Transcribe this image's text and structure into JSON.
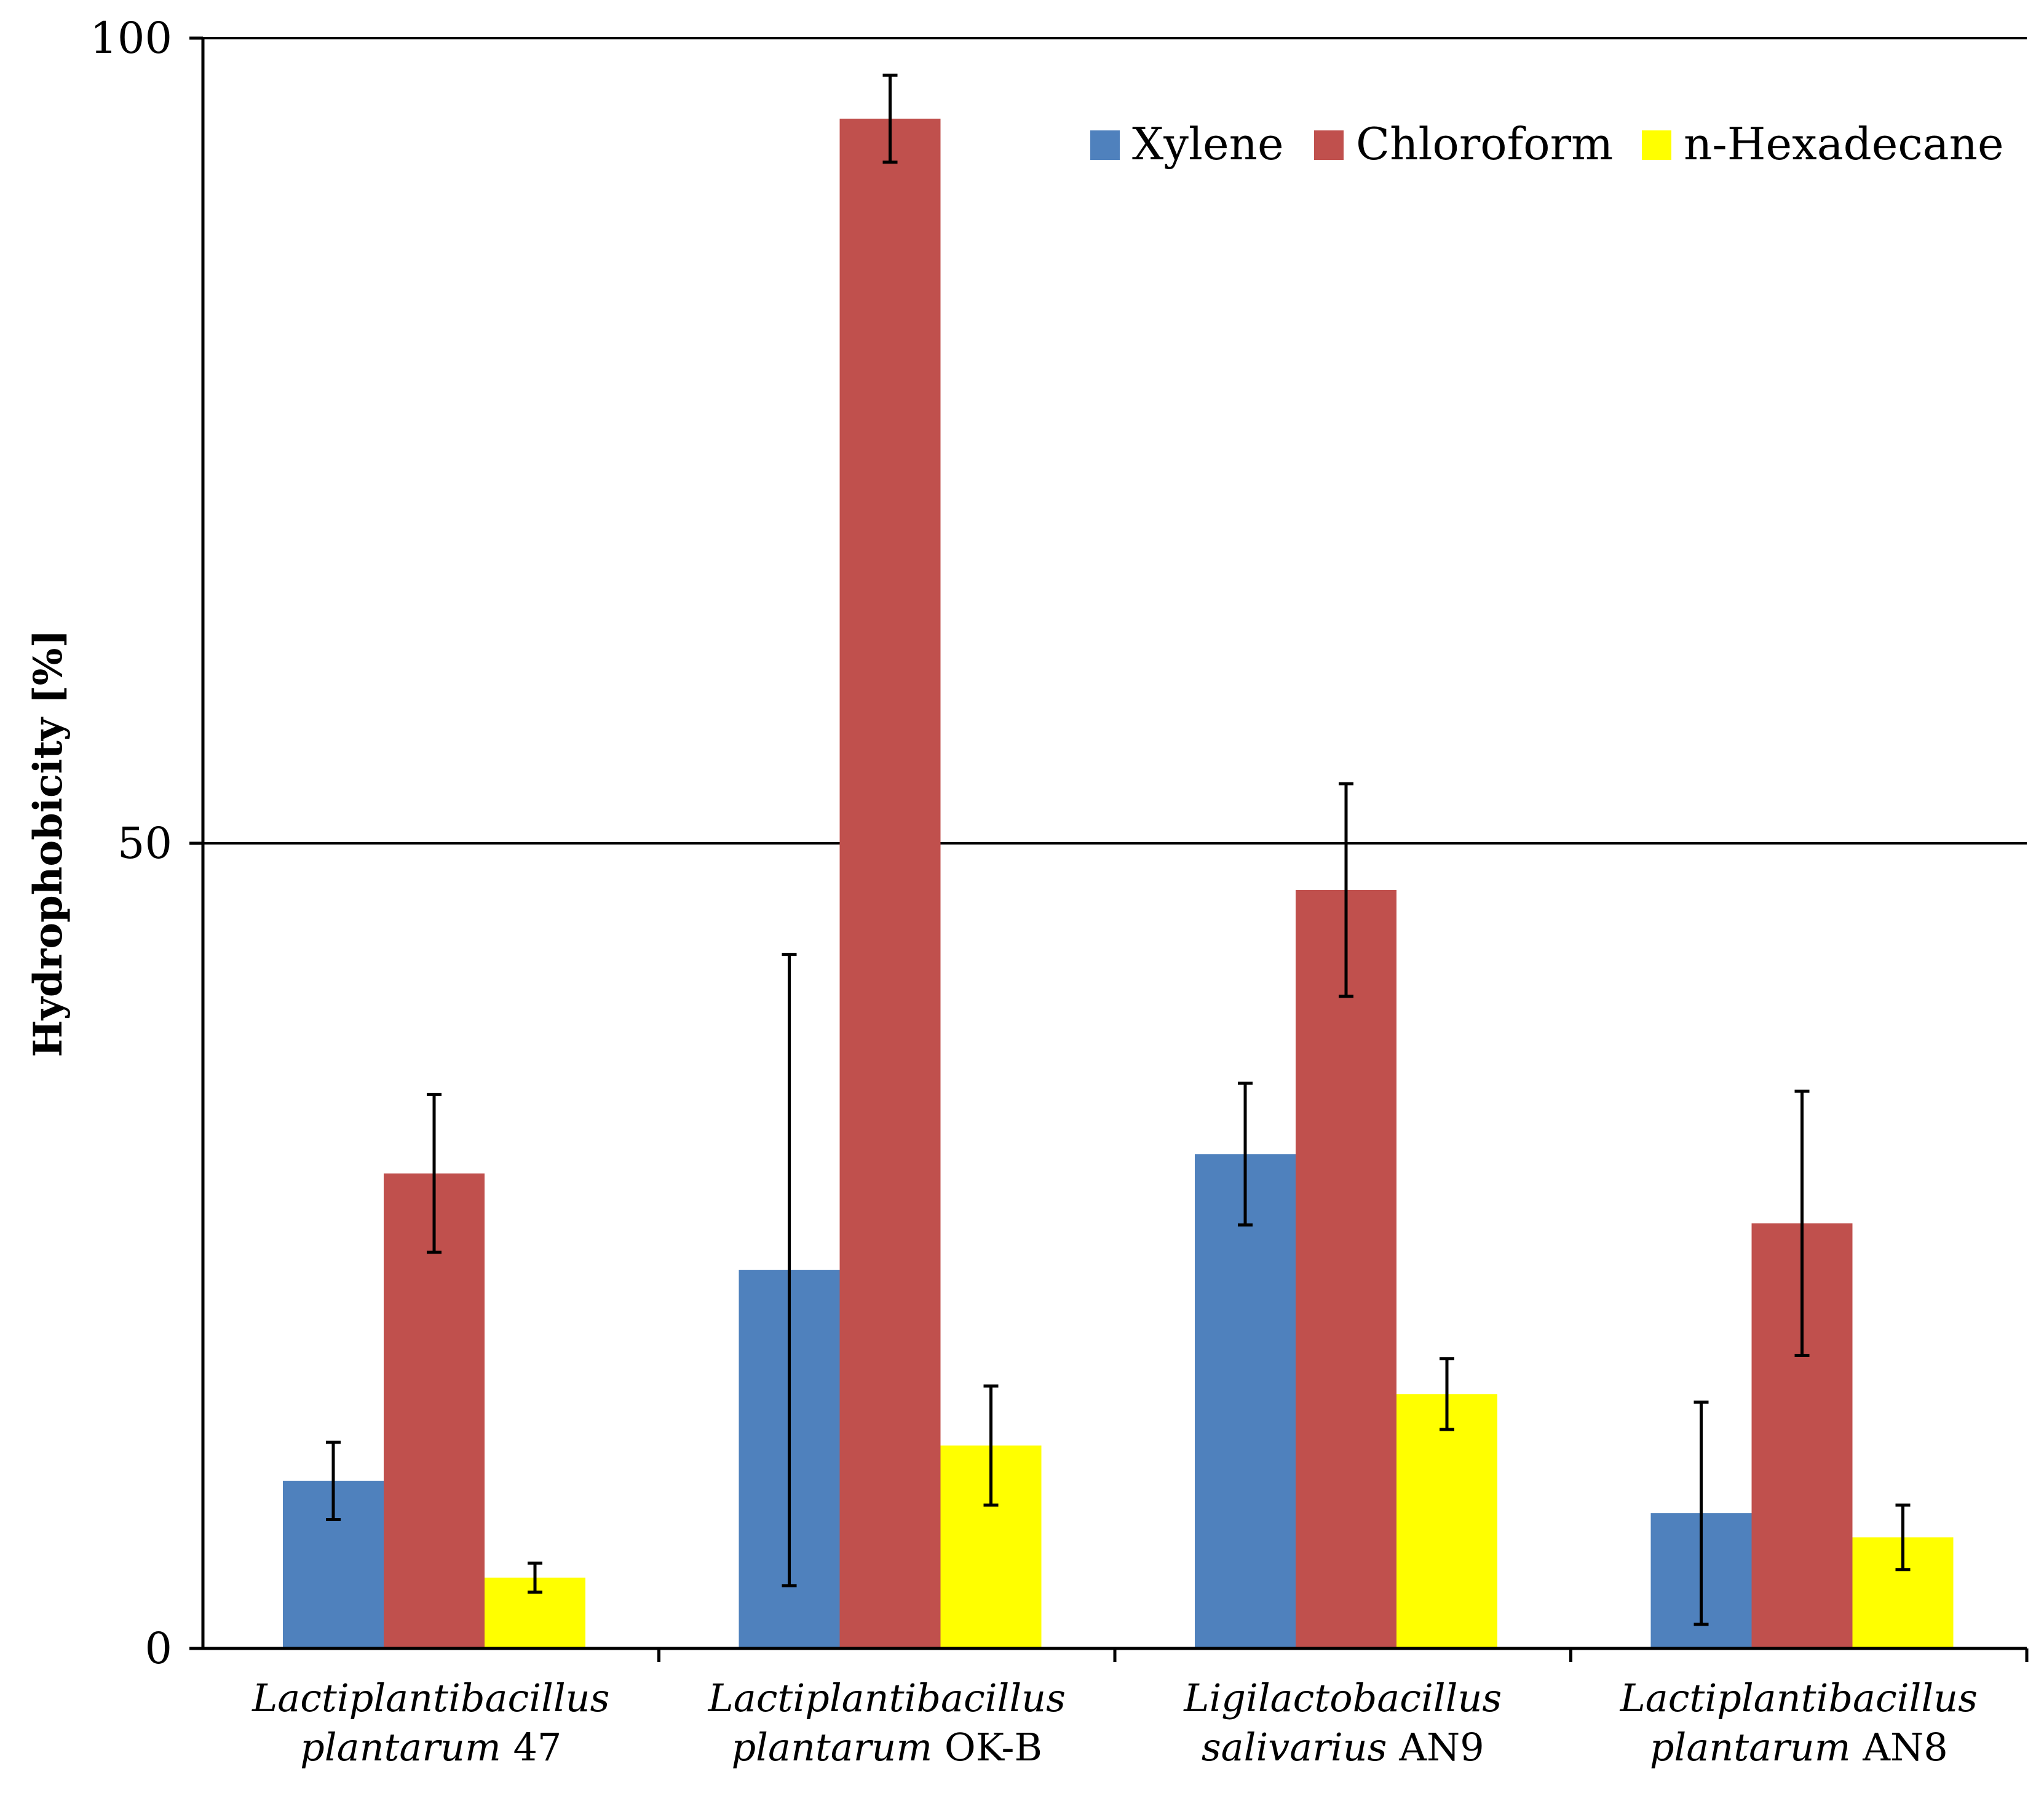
{
  "chart_data": {
    "type": "bar",
    "title": "",
    "xlabel": "",
    "ylabel": "Hydrophobicity [%]",
    "ylim": [
      0,
      100
    ],
    "yticks": [
      0,
      50,
      100
    ],
    "gridlines_y": [
      50,
      100
    ],
    "legend_position": "top-right",
    "categories": [
      {
        "genus": "Lactiplantibacillus",
        "species": "plantarum",
        "strain": "47"
      },
      {
        "genus": "Lactiplantibacillus",
        "species": "plantarum",
        "strain": "OK-B"
      },
      {
        "genus": "Ligilactobacillus",
        "species": "salivarius",
        "strain": "AN9"
      },
      {
        "genus": "Lactiplantibacillus",
        "species": "plantarum",
        "strain": "AN8"
      }
    ],
    "series": [
      {
        "name": "Xylene",
        "color": "#4f81bd",
        "values": [
          10.4,
          23.5,
          30.7,
          8.4
        ],
        "errors": [
          2.4,
          19.6,
          4.4,
          6.9
        ]
      },
      {
        "name": "Chloroform",
        "color": "#c0504d",
        "values": [
          29.5,
          95.0,
          47.1,
          26.4
        ],
        "errors": [
          4.9,
          2.7,
          6.6,
          8.2
        ]
      },
      {
        "name": "n-Hexadecane",
        "color": "#ffff00",
        "values": [
          4.4,
          12.6,
          15.8,
          6.9
        ],
        "errors": [
          0.9,
          3.7,
          2.2,
          2.0
        ]
      }
    ]
  }
}
